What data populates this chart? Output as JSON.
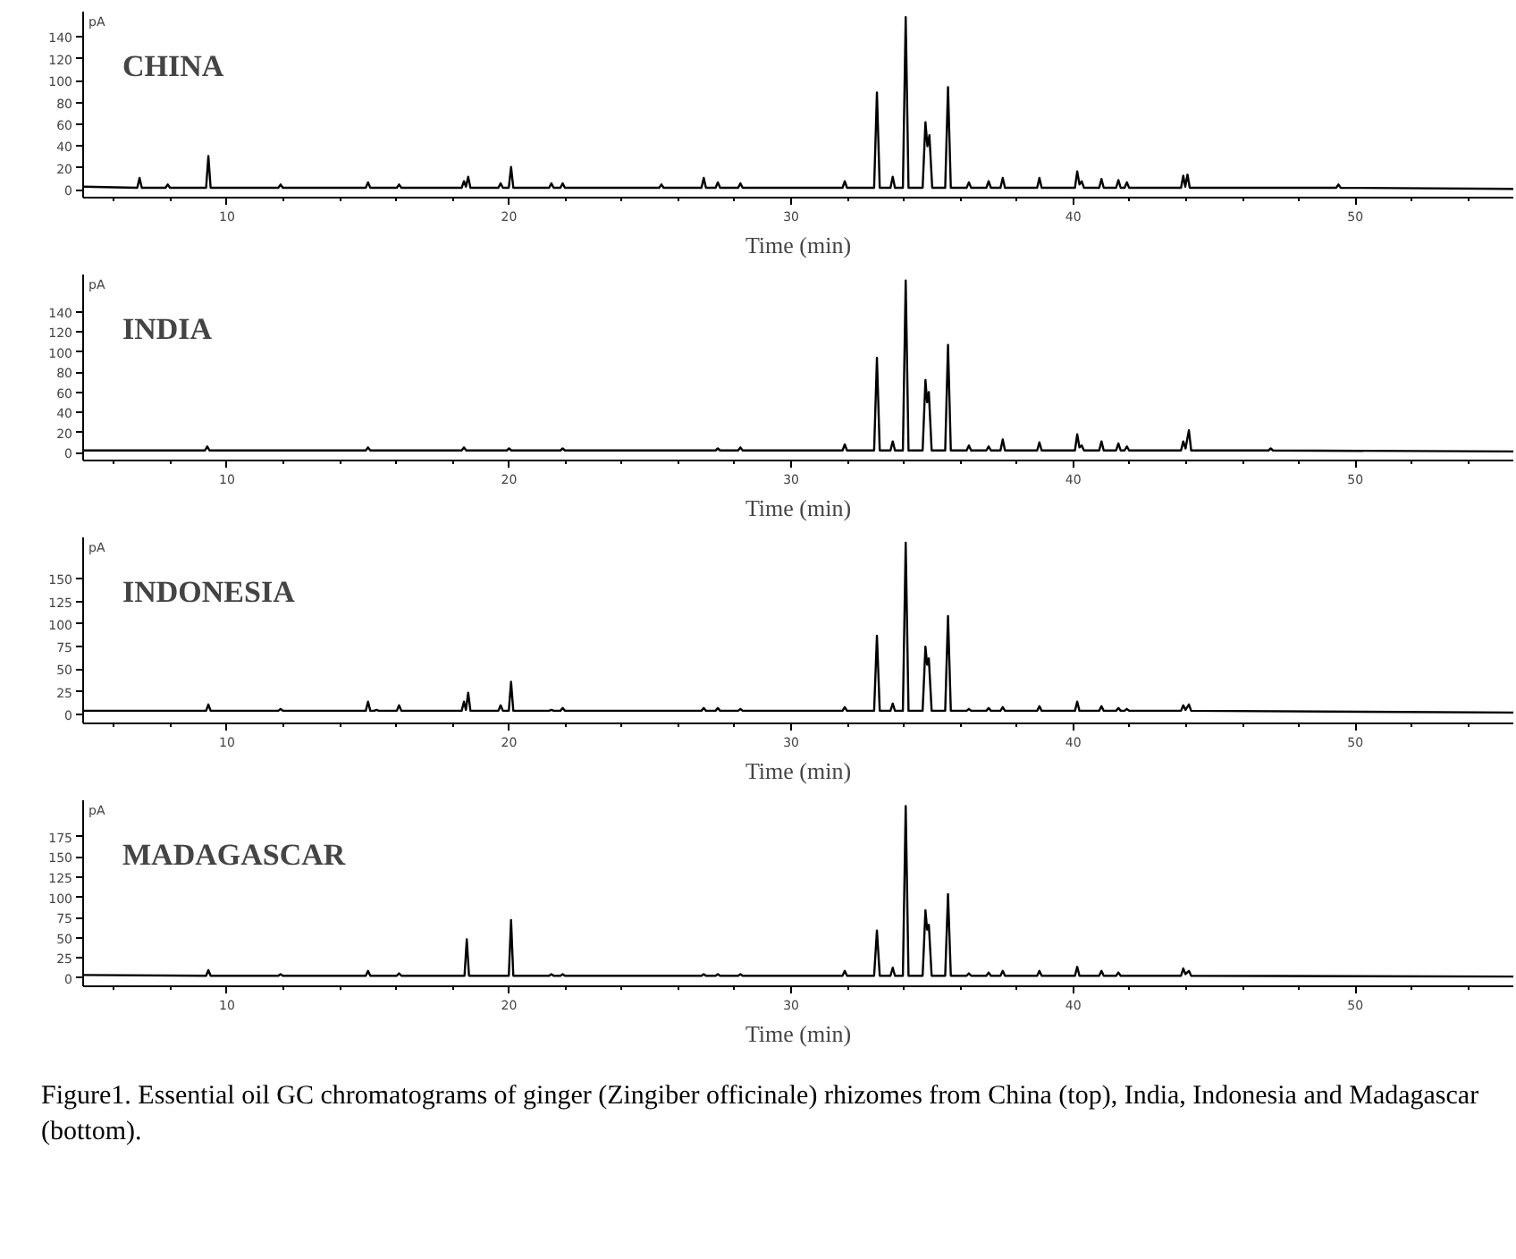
{
  "chart_data": [
    {
      "type": "line",
      "title": "CHINA",
      "xlabel": "Time (min)",
      "ylabel": "pA",
      "xlim": [
        4.9,
        55.6
      ],
      "ylim": [
        -7,
        163
      ],
      "xticks": [
        {
          "value": 6,
          "label": null
        },
        {
          "value": 8,
          "label": null
        },
        10,
        {
          "value": 12,
          "label": null
        },
        {
          "value": 14,
          "label": null
        },
        {
          "value": 16,
          "label": null
        },
        {
          "value": 18,
          "label": null
        },
        20,
        {
          "value": 22,
          "label": null
        },
        {
          "value": 24,
          "label": null
        },
        {
          "value": 26,
          "label": null
        },
        {
          "value": 28,
          "label": null
        },
        30,
        {
          "value": 32,
          "label": null
        },
        {
          "value": 34,
          "label": null
        },
        {
          "value": 36,
          "label": null
        },
        {
          "value": 38,
          "label": null
        },
        40,
        {
          "value": 42,
          "label": null
        },
        {
          "value": 44,
          "label": null
        },
        {
          "value": 46,
          "label": null
        },
        {
          "value": 48,
          "label": null
        },
        50,
        {
          "value": 52,
          "label": null
        },
        {
          "value": 54,
          "label": null
        }
      ],
      "yticks": [
        0,
        20,
        40,
        60,
        80,
        100,
        120,
        140
      ],
      "x": [
        4.9,
        6.82,
        6.9,
        6.98,
        7.82,
        7.9,
        7.98,
        9.26,
        9.34,
        9.42,
        11.82,
        11.9,
        11.98,
        14.92,
        15.0,
        15.08,
        16.02,
        16.1,
        16.18,
        18.32,
        18.4,
        18.47,
        18.55,
        18.63,
        19.62,
        19.7,
        19.78,
        19.99,
        20.07,
        20.15,
        21.42,
        21.5,
        21.58,
        21.82,
        21.9,
        21.98,
        25.32,
        25.4,
        25.48,
        26.82,
        26.9,
        26.98,
        27.32,
        27.4,
        27.48,
        28.12,
        28.2,
        28.28,
        31.82,
        31.9,
        31.98,
        32.94,
        33.04,
        33.14,
        33.52,
        33.6,
        33.68,
        33.96,
        34.06,
        34.16,
        34.66,
        34.76,
        34.83,
        34.9,
        35.0,
        35.46,
        35.56,
        35.66,
        36.22,
        36.3,
        36.38,
        36.92,
        37.0,
        37.08,
        37.42,
        37.5,
        37.58,
        38.72,
        38.8,
        38.88,
        40.06,
        40.14,
        40.22,
        40.3,
        40.38,
        40.92,
        41.0,
        41.08,
        41.52,
        41.6,
        41.68,
        41.82,
        41.9,
        41.98,
        43.82,
        43.9,
        43.97,
        44.05,
        44.13,
        49.32,
        49.4,
        49.48,
        55.6
      ],
      "series": [
        {
          "color": "#000000",
          "values": [
            3,
            2,
            11,
            2,
            2,
            5,
            2,
            2,
            31,
            2,
            2,
            5,
            2,
            2,
            7,
            2,
            2,
            5,
            2,
            2,
            8,
            3,
            12,
            2,
            2,
            6,
            2,
            2,
            21,
            2,
            2,
            6,
            2,
            2,
            6,
            2,
            2,
            5,
            2,
            2,
            11,
            2,
            2,
            7,
            2,
            2,
            6,
            2,
            2,
            8,
            2,
            2,
            89,
            2,
            2,
            12,
            2,
            2,
            158,
            2,
            2,
            62,
            40,
            50,
            2,
            2,
            94,
            2,
            2,
            7,
            2,
            2,
            8,
            2,
            2,
            11,
            2,
            2,
            11,
            2,
            2,
            17,
            5,
            8,
            2,
            2,
            10,
            2,
            2,
            9,
            2,
            2,
            7,
            2,
            2,
            13,
            3,
            14,
            2,
            2,
            5,
            2,
            1
          ]
        }
      ]
    },
    {
      "type": "line",
      "title": "INDIA",
      "xlabel": "Time (min)",
      "ylabel": "pA",
      "xlim": [
        4.9,
        55.6
      ],
      "ylim": [
        -8,
        177
      ],
      "xticks": [
        {
          "value": 6,
          "label": null
        },
        {
          "value": 8,
          "label": null
        },
        10,
        {
          "value": 12,
          "label": null
        },
        {
          "value": 14,
          "label": null
        },
        {
          "value": 16,
          "label": null
        },
        {
          "value": 18,
          "label": null
        },
        20,
        {
          "value": 22,
          "label": null
        },
        {
          "value": 24,
          "label": null
        },
        {
          "value": 26,
          "label": null
        },
        {
          "value": 28,
          "label": null
        },
        30,
        {
          "value": 32,
          "label": null
        },
        {
          "value": 34,
          "label": null
        },
        {
          "value": 36,
          "label": null
        },
        {
          "value": 38,
          "label": null
        },
        40,
        {
          "value": 42,
          "label": null
        },
        {
          "value": 44,
          "label": null
        },
        {
          "value": 46,
          "label": null
        },
        {
          "value": 48,
          "label": null
        },
        50,
        {
          "value": 52,
          "label": null
        },
        {
          "value": 54,
          "label": null
        }
      ],
      "yticks": [
        0,
        20,
        40,
        60,
        80,
        100,
        120,
        140
      ],
      "x": [
        4.9,
        9.22,
        9.3,
        9.38,
        14.92,
        15.0,
        15.08,
        18.32,
        18.4,
        18.48,
        19.92,
        20.0,
        20.08,
        21.82,
        21.9,
        21.98,
        27.32,
        27.4,
        27.48,
        28.12,
        28.2,
        28.28,
        31.82,
        31.9,
        31.98,
        32.94,
        33.04,
        33.14,
        33.52,
        33.6,
        33.68,
        33.96,
        34.06,
        34.16,
        34.66,
        34.76,
        34.82,
        34.88,
        34.98,
        35.46,
        35.56,
        35.66,
        36.22,
        36.3,
        36.38,
        36.92,
        37.0,
        37.08,
        37.42,
        37.5,
        37.58,
        38.72,
        38.8,
        38.88,
        40.06,
        40.14,
        40.22,
        40.3,
        40.38,
        40.92,
        41.0,
        41.08,
        41.52,
        41.6,
        41.68,
        41.82,
        41.9,
        41.98,
        43.82,
        43.9,
        43.98,
        44.1,
        44.18,
        46.92,
        47.0,
        47.08,
        55.6
      ],
      "series": [
        {
          "color": "#000000",
          "values": [
            2,
            2,
            6,
            2,
            2,
            5,
            2,
            2,
            5,
            2,
            2,
            4,
            2,
            2,
            4,
            2,
            2,
            4,
            2,
            2,
            5,
            2,
            2,
            8,
            2,
            2,
            94,
            2,
            2,
            11,
            2,
            2,
            171,
            2,
            2,
            72,
            50,
            60,
            2,
            2,
            107,
            2,
            2,
            7,
            2,
            2,
            6,
            2,
            2,
            13,
            2,
            2,
            10,
            2,
            2,
            18,
            5,
            7,
            2,
            2,
            11,
            2,
            2,
            9,
            2,
            2,
            6,
            2,
            2,
            11,
            4,
            22,
            2,
            2,
            4,
            2,
            1
          ]
        }
      ]
    },
    {
      "type": "line",
      "title": "INDONESIA",
      "xlabel": "Time (min)",
      "ylabel": "pA",
      "xlim": [
        4.9,
        55.6
      ],
      "ylim": [
        -10,
        196
      ],
      "xticks": [
        {
          "value": 6,
          "label": null
        },
        {
          "value": 8,
          "label": null
        },
        10,
        {
          "value": 12,
          "label": null
        },
        {
          "value": 14,
          "label": null
        },
        {
          "value": 16,
          "label": null
        },
        {
          "value": 18,
          "label": null
        },
        20,
        {
          "value": 22,
          "label": null
        },
        {
          "value": 24,
          "label": null
        },
        {
          "value": 26,
          "label": null
        },
        {
          "value": 28,
          "label": null
        },
        30,
        {
          "value": 32,
          "label": null
        },
        {
          "value": 34,
          "label": null
        },
        {
          "value": 36,
          "label": null
        },
        {
          "value": 38,
          "label": null
        },
        40,
        {
          "value": 42,
          "label": null
        },
        {
          "value": 44,
          "label": null
        },
        {
          "value": 46,
          "label": null
        },
        {
          "value": 48,
          "label": null
        },
        50,
        {
          "value": 52,
          "label": null
        },
        {
          "value": 54,
          "label": null
        }
      ],
      "yticks": [
        0,
        25,
        50,
        75,
        100,
        125,
        150
      ],
      "x": [
        4.9,
        9.26,
        9.34,
        9.42,
        11.82,
        11.9,
        11.98,
        14.92,
        15.0,
        15.08,
        15.22,
        15.3,
        15.38,
        16.02,
        16.1,
        16.18,
        18.32,
        18.4,
        18.47,
        18.55,
        18.63,
        19.62,
        19.7,
        19.78,
        19.99,
        20.07,
        20.15,
        21.42,
        21.5,
        21.58,
        21.82,
        21.9,
        21.98,
        26.82,
        26.9,
        26.98,
        27.32,
        27.4,
        27.48,
        28.12,
        28.2,
        28.28,
        31.82,
        31.9,
        31.98,
        32.94,
        33.04,
        33.14,
        33.52,
        33.6,
        33.68,
        33.96,
        34.06,
        34.16,
        34.66,
        34.76,
        34.82,
        34.88,
        34.98,
        35.46,
        35.56,
        35.66,
        36.22,
        36.3,
        36.38,
        36.92,
        37.0,
        37.08,
        37.42,
        37.5,
        37.58,
        38.72,
        38.8,
        38.88,
        40.06,
        40.14,
        40.22,
        40.92,
        41.0,
        41.08,
        41.52,
        41.6,
        41.68,
        41.82,
        41.9,
        41.98,
        43.82,
        43.9,
        43.98,
        44.1,
        44.18,
        55.6
      ],
      "series": [
        {
          "color": "#000000",
          "values": [
            4,
            4,
            11,
            4,
            4,
            6,
            4,
            4,
            14,
            4,
            4,
            5,
            4,
            4,
            10,
            4,
            4,
            14,
            5,
            24,
            4,
            4,
            10,
            4,
            4,
            36,
            4,
            4,
            5,
            4,
            4,
            7,
            4,
            4,
            7,
            4,
            4,
            7,
            4,
            4,
            6,
            4,
            4,
            8,
            4,
            4,
            87,
            4,
            4,
            12,
            4,
            4,
            190,
            4,
            4,
            75,
            55,
            62,
            4,
            4,
            109,
            4,
            4,
            6,
            4,
            4,
            7,
            4,
            4,
            8,
            4,
            4,
            9,
            4,
            4,
            14,
            4,
            4,
            9,
            4,
            4,
            7,
            4,
            4,
            6,
            4,
            4,
            10,
            5,
            11,
            4,
            2
          ]
        }
      ]
    },
    {
      "type": "line",
      "title": "MADAGASCAR",
      "xlabel": "Time (min)",
      "ylabel": "pA",
      "xlim": [
        4.9,
        55.6
      ],
      "ylim": [
        -10,
        220
      ],
      "xticks": [
        {
          "value": 6,
          "label": null
        },
        {
          "value": 8,
          "label": null
        },
        10,
        {
          "value": 12,
          "label": null
        },
        {
          "value": 14,
          "label": null
        },
        {
          "value": 16,
          "label": null
        },
        {
          "value": 18,
          "label": null
        },
        20,
        {
          "value": 22,
          "label": null
        },
        {
          "value": 24,
          "label": null
        },
        {
          "value": 26,
          "label": null
        },
        {
          "value": 28,
          "label": null
        },
        30,
        {
          "value": 32,
          "label": null
        },
        {
          "value": 34,
          "label": null
        },
        {
          "value": 36,
          "label": null
        },
        {
          "value": 38,
          "label": null
        },
        40,
        {
          "value": 42,
          "label": null
        },
        {
          "value": 44,
          "label": null
        },
        {
          "value": 46,
          "label": null
        },
        {
          "value": 48,
          "label": null
        },
        50,
        {
          "value": 52,
          "label": null
        },
        {
          "value": 54,
          "label": null
        }
      ],
      "yticks": [
        0,
        25,
        50,
        75,
        100,
        125,
        150,
        175
      ],
      "x": [
        4.9,
        9.26,
        9.34,
        9.42,
        11.82,
        11.9,
        11.98,
        14.92,
        15.0,
        15.08,
        16.02,
        16.1,
        16.18,
        18.42,
        18.5,
        18.58,
        19.99,
        20.07,
        20.15,
        21.42,
        21.5,
        21.58,
        21.82,
        21.9,
        21.98,
        26.82,
        26.9,
        26.98,
        27.32,
        27.4,
        27.48,
        28.12,
        28.2,
        28.28,
        31.82,
        31.9,
        31.98,
        32.94,
        33.04,
        33.14,
        33.52,
        33.6,
        33.68,
        33.96,
        34.06,
        34.16,
        34.66,
        34.76,
        34.82,
        34.88,
        34.98,
        35.46,
        35.56,
        35.66,
        36.22,
        36.3,
        36.38,
        36.92,
        37.0,
        37.08,
        37.42,
        37.5,
        37.58,
        38.72,
        38.8,
        38.88,
        40.06,
        40.14,
        40.22,
        40.92,
        41.0,
        41.08,
        41.52,
        41.6,
        41.68,
        43.82,
        43.9,
        43.98,
        44.1,
        44.18,
        55.6
      ],
      "series": [
        {
          "color": "#000000",
          "values": [
            4,
            3,
            10,
            3,
            3,
            5,
            3,
            3,
            9,
            3,
            3,
            6,
            3,
            3,
            48,
            3,
            3,
            72,
            3,
            3,
            5,
            3,
            3,
            5,
            3,
            3,
            5,
            3,
            3,
            5,
            3,
            3,
            5,
            3,
            3,
            9,
            3,
            3,
            59,
            3,
            3,
            13,
            3,
            3,
            213,
            3,
            3,
            84,
            60,
            66,
            3,
            3,
            104,
            3,
            3,
            6,
            3,
            3,
            7,
            3,
            3,
            9,
            3,
            3,
            9,
            3,
            3,
            14,
            3,
            3,
            9,
            3,
            3,
            7,
            3,
            3,
            12,
            5,
            9,
            3,
            2
          ]
        }
      ],
      "annotations": [
        "Figure1. Essential oil GC chromatograms of ginger (Zingiber officinale) rhizomes from China (top), India, Indonesia and Madagascar (bottom)."
      ]
    }
  ]
}
